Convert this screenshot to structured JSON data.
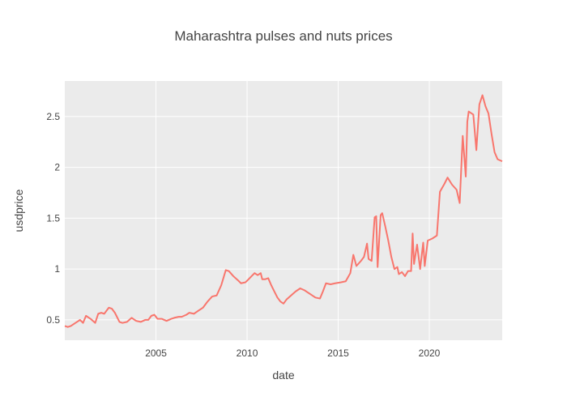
{
  "chart_data": {
    "type": "line",
    "title": "Maharashtra pulses and nuts prices",
    "xlabel": "date",
    "ylabel": "usdprice",
    "xlim": [
      "2000-01-01",
      "2024-01-01"
    ],
    "ylim": [
      0.3,
      2.85
    ],
    "x_ticks": [
      "2005",
      "2010",
      "2015",
      "2020"
    ],
    "y_ticks": [
      "0.5",
      "1",
      "1.5",
      "2",
      "2.5"
    ],
    "grid": true,
    "colors": {
      "line": "#F8766D",
      "plot_bg": "#EBEBEB",
      "grid": "#FFFFFF",
      "text": "#444444"
    },
    "series": [
      {
        "points": [
          [
            "2000-01-01",
            0.44
          ],
          [
            "2000-03-01",
            0.43
          ],
          [
            "2000-05-01",
            0.44
          ],
          [
            "2000-07-01",
            0.46
          ],
          [
            "2000-09-01",
            0.48
          ],
          [
            "2000-11-01",
            0.5
          ],
          [
            "2001-01-01",
            0.47
          ],
          [
            "2001-03-01",
            0.54
          ],
          [
            "2001-06-01",
            0.51
          ],
          [
            "2001-09-01",
            0.47
          ],
          [
            "2001-11-01",
            0.56
          ],
          [
            "2002-01-01",
            0.57
          ],
          [
            "2002-03-01",
            0.56
          ],
          [
            "2002-05-01",
            0.6
          ],
          [
            "2002-06-01",
            0.62
          ],
          [
            "2002-08-01",
            0.61
          ],
          [
            "2002-10-01",
            0.57
          ],
          [
            "2003-01-01",
            0.48
          ],
          [
            "2003-03-01",
            0.47
          ],
          [
            "2003-06-01",
            0.48
          ],
          [
            "2003-09-01",
            0.52
          ],
          [
            "2003-12-01",
            0.49
          ],
          [
            "2004-03-01",
            0.48
          ],
          [
            "2004-06-01",
            0.5
          ],
          [
            "2004-08-01",
            0.5
          ],
          [
            "2004-10-01",
            0.54
          ],
          [
            "2004-12-01",
            0.55
          ],
          [
            "2005-02-01",
            0.51
          ],
          [
            "2005-05-01",
            0.51
          ],
          [
            "2005-08-01",
            0.49
          ],
          [
            "2005-11-01",
            0.51
          ],
          [
            "2006-01-01",
            0.52
          ],
          [
            "2006-04-01",
            0.53
          ],
          [
            "2006-06-01",
            0.53
          ],
          [
            "2006-09-01",
            0.55
          ],
          [
            "2006-11-01",
            0.57
          ],
          [
            "2007-02-01",
            0.56
          ],
          [
            "2007-05-01",
            0.59
          ],
          [
            "2007-08-01",
            0.62
          ],
          [
            "2007-11-01",
            0.68
          ],
          [
            "2008-02-01",
            0.73
          ],
          [
            "2008-05-01",
            0.74
          ],
          [
            "2008-08-01",
            0.84
          ],
          [
            "2008-10-01",
            0.94
          ],
          [
            "2008-11-01",
            0.99
          ],
          [
            "2009-01-01",
            0.98
          ],
          [
            "2009-04-01",
            0.93
          ],
          [
            "2009-07-01",
            0.89
          ],
          [
            "2009-09-01",
            0.86
          ],
          [
            "2009-12-01",
            0.87
          ],
          [
            "2010-02-01",
            0.9
          ],
          [
            "2010-04-01",
            0.93
          ],
          [
            "2010-06-01",
            0.96
          ],
          [
            "2010-08-01",
            0.94
          ],
          [
            "2010-10-01",
            0.96
          ],
          [
            "2010-11-01",
            0.9
          ],
          [
            "2011-01-01",
            0.9
          ],
          [
            "2011-03-01",
            0.91
          ],
          [
            "2011-05-01",
            0.84
          ],
          [
            "2011-07-01",
            0.78
          ],
          [
            "2011-09-01",
            0.72
          ],
          [
            "2011-11-01",
            0.68
          ],
          [
            "2012-01-01",
            0.66
          ],
          [
            "2012-03-01",
            0.7
          ],
          [
            "2012-06-01",
            0.74
          ],
          [
            "2012-09-01",
            0.78
          ],
          [
            "2012-12-01",
            0.81
          ],
          [
            "2013-03-01",
            0.79
          ],
          [
            "2013-05-01",
            0.77
          ],
          [
            "2013-08-01",
            0.74
          ],
          [
            "2013-10-01",
            0.72
          ],
          [
            "2014-01-01",
            0.71
          ],
          [
            "2014-03-01",
            0.78
          ],
          [
            "2014-05-01",
            0.86
          ],
          [
            "2014-08-01",
            0.85
          ],
          [
            "2014-11-01",
            0.86
          ],
          [
            "2015-03-01",
            0.87
          ],
          [
            "2015-06-01",
            0.88
          ],
          [
            "2015-09-01",
            0.96
          ],
          [
            "2015-11-01",
            1.14
          ],
          [
            "2016-01-01",
            1.03
          ],
          [
            "2016-04-01",
            1.08
          ],
          [
            "2016-06-01",
            1.12
          ],
          [
            "2016-08-01",
            1.25
          ],
          [
            "2016-09-01",
            1.1
          ],
          [
            "2016-11-01",
            1.08
          ],
          [
            "2017-01-01",
            1.51
          ],
          [
            "2017-02-01",
            1.52
          ],
          [
            "2017-03-01",
            1.02
          ],
          [
            "2017-05-01",
            1.53
          ],
          [
            "2017-06-01",
            1.55
          ],
          [
            "2017-08-01",
            1.42
          ],
          [
            "2017-10-01",
            1.28
          ],
          [
            "2017-12-01",
            1.12
          ],
          [
            "2018-02-01",
            1.0
          ],
          [
            "2018-04-01",
            1.02
          ],
          [
            "2018-05-01",
            0.95
          ],
          [
            "2018-07-01",
            0.97
          ],
          [
            "2018-09-01",
            0.93
          ],
          [
            "2018-11-01",
            0.98
          ],
          [
            "2019-01-01",
            0.98
          ],
          [
            "2019-02-01",
            1.35
          ],
          [
            "2019-03-01",
            1.05
          ],
          [
            "2019-05-01",
            1.24
          ],
          [
            "2019-07-01",
            1.0
          ],
          [
            "2019-09-01",
            1.26
          ],
          [
            "2019-10-01",
            1.03
          ],
          [
            "2019-12-01",
            1.28
          ],
          [
            "2020-03-01",
            1.3
          ],
          [
            "2020-06-01",
            1.33
          ],
          [
            "2020-08-01",
            1.76
          ],
          [
            "2020-11-01",
            1.84
          ],
          [
            "2021-01-01",
            1.9
          ],
          [
            "2021-04-01",
            1.83
          ],
          [
            "2021-07-01",
            1.78
          ],
          [
            "2021-09-01",
            1.65
          ],
          [
            "2021-11-01",
            2.31
          ],
          [
            "2022-01-01",
            1.91
          ],
          [
            "2022-02-01",
            2.45
          ],
          [
            "2022-03-01",
            2.55
          ],
          [
            "2022-06-01",
            2.52
          ],
          [
            "2022-08-01",
            2.17
          ],
          [
            "2022-10-01",
            2.62
          ],
          [
            "2022-12-01",
            2.71
          ],
          [
            "2023-02-01",
            2.6
          ],
          [
            "2023-04-01",
            2.53
          ],
          [
            "2023-06-01",
            2.33
          ],
          [
            "2023-08-01",
            2.15
          ],
          [
            "2023-10-01",
            2.08
          ],
          [
            "2024-01-01",
            2.06
          ]
        ]
      }
    ]
  }
}
